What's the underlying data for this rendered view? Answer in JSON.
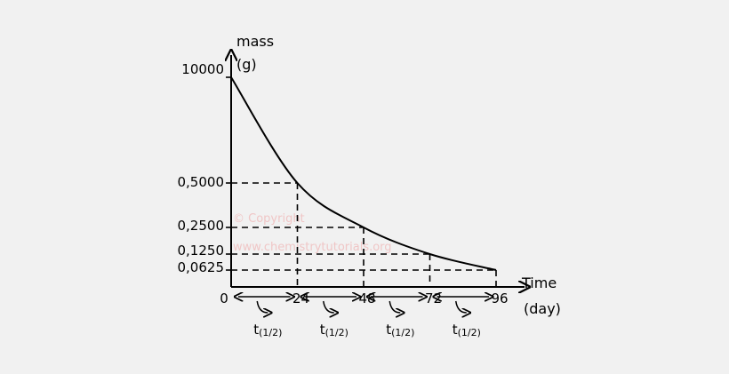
{
  "chart_data": {
    "type": "line",
    "x": [
      0,
      24,
      48,
      72,
      96
    ],
    "y": [
      10000,
      0.5,
      0.25,
      0.125,
      0.0625
    ],
    "x_ticks": [
      "0",
      "24",
      "48",
      "72",
      "96"
    ],
    "y_ticks": [
      "10000",
      "0,5000",
      "0,2500",
      "0,1250",
      "0,0625"
    ],
    "xlabel": {
      "line1": "Time",
      "line2": "(day)"
    },
    "ylabel": {
      "line1": "mass",
      "line2": "(g)"
    },
    "half_life_label": {
      "main": "t",
      "sub": "(1/2)"
    },
    "watermark": {
      "line1": "© Copyright",
      "line2": "www.chemistrytutorials.org"
    },
    "grid": "dashed reference lines to each point",
    "colors": {
      "curve": "#000000",
      "dash": "#000000",
      "background": "#f1f1f1",
      "watermark": "#f0c6c6"
    }
  }
}
